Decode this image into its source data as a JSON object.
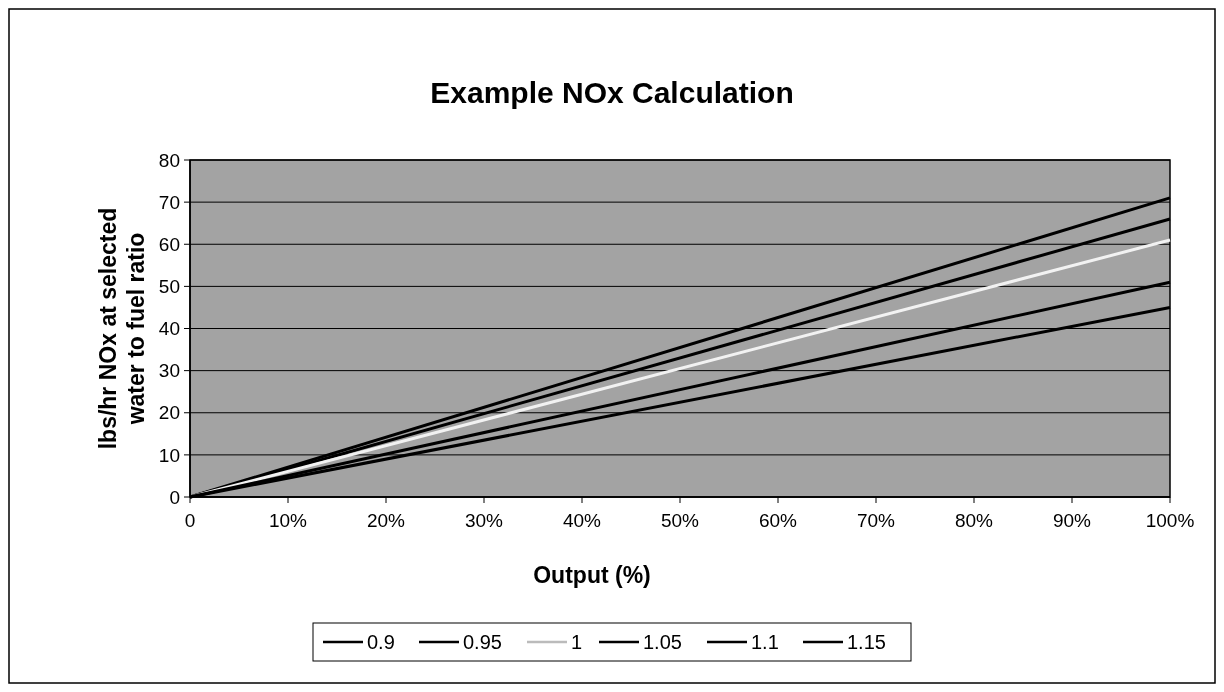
{
  "chart_data": {
    "type": "line",
    "title": "Example NOx Calculation",
    "xlabel": "Output (%)",
    "ylabel": "lbs/hr NOx at selected water to fuel ratio",
    "x": [
      0,
      100
    ],
    "series": [
      {
        "name": "0.9",
        "color": "#000000",
        "values": [
          0,
          71
        ]
      },
      {
        "name": "0.95",
        "color": "#000000",
        "values": [
          0,
          66
        ]
      },
      {
        "name": "1",
        "color": "#f2f2f2",
        "values": [
          0,
          61
        ]
      },
      {
        "name": "1.05",
        "color": "#000000",
        "values": [
          null,
          null
        ]
      },
      {
        "name": "1.1",
        "color": "#000000",
        "values": [
          0,
          51
        ]
      },
      {
        "name": "1.15",
        "color": "#000000",
        "values": [
          0,
          45
        ]
      }
    ],
    "xlim": [
      0,
      100
    ],
    "xticks": [
      0,
      {
        "value": 10,
        "label": "10%"
      },
      {
        "value": 20,
        "label": "20%"
      },
      {
        "value": 30,
        "label": "30%"
      },
      {
        "value": 40,
        "label": "40%"
      },
      {
        "value": 50,
        "label": "50%"
      },
      {
        "value": 60,
        "label": "60%"
      },
      {
        "value": 70,
        "label": "70%"
      },
      {
        "value": 80,
        "label": "80%"
      },
      {
        "value": 90,
        "label": "90%"
      },
      {
        "value": 100,
        "label": "100%"
      }
    ],
    "ylim": [
      0,
      80
    ],
    "yticks": [
      0,
      10,
      20,
      30,
      40,
      50,
      60,
      70,
      80
    ],
    "grid": "y",
    "legend": "bottom",
    "marker": "none",
    "line_style": "solid"
  }
}
